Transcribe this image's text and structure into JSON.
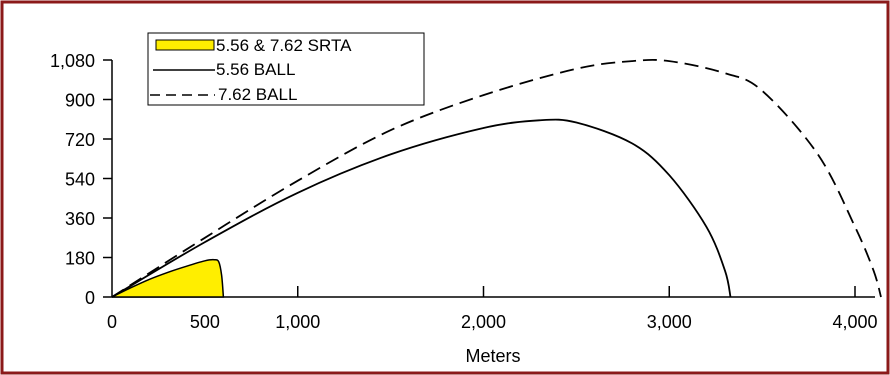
{
  "colors": {
    "frame": "#8b1a1a",
    "background": "#ffffff",
    "srta_fill": "#ffee00",
    "line": "#000000"
  },
  "chart_data": {
    "type": "area",
    "title": "",
    "xlabel": "Meters",
    "ylabel": "",
    "xlim": [
      0,
      4150
    ],
    "ylim": [
      0,
      1080
    ],
    "x_ticks": [
      0,
      500,
      1000,
      2000,
      3000,
      4000
    ],
    "x_tick_labels": [
      "0",
      "500",
      "1,000",
      "2,000",
      "3,000",
      "4,000"
    ],
    "y_ticks": [
      0,
      180,
      360,
      540,
      720,
      900,
      1080
    ],
    "y_tick_labels": [
      "0",
      "180",
      "360",
      "540",
      "720",
      "900",
      "1,080"
    ],
    "grid": false,
    "legend_position": "top-left",
    "series": [
      {
        "name": "5.56 & 7.62 SRTA",
        "style": "filled-area",
        "color": "#ffee00",
        "x": [
          0,
          100,
          200,
          300,
          400,
          500,
          550,
          575,
          590,
          600
        ],
        "y": [
          0,
          42,
          80,
          112,
          140,
          165,
          170,
          160,
          100,
          0
        ]
      },
      {
        "name": "5.56 BALL",
        "style": "solid",
        "color": "#000000",
        "x": [
          0,
          500,
          1000,
          1500,
          2000,
          2300,
          2500,
          2800,
          3000,
          3200,
          3300,
          3330
        ],
        "y": [
          0,
          250,
          475,
          650,
          770,
          805,
          795,
          700,
          555,
          320,
          120,
          0
        ]
      },
      {
        "name": "7.62 BALL",
        "style": "dashed",
        "color": "#000000",
        "x": [
          0,
          500,
          1000,
          1500,
          2000,
          2500,
          2800,
          3000,
          3300,
          3500,
          3800,
          4000,
          4100,
          4140
        ],
        "y": [
          0,
          270,
          530,
          760,
          920,
          1040,
          1075,
          1075,
          1020,
          940,
          650,
          320,
          120,
          0
        ]
      }
    ]
  }
}
